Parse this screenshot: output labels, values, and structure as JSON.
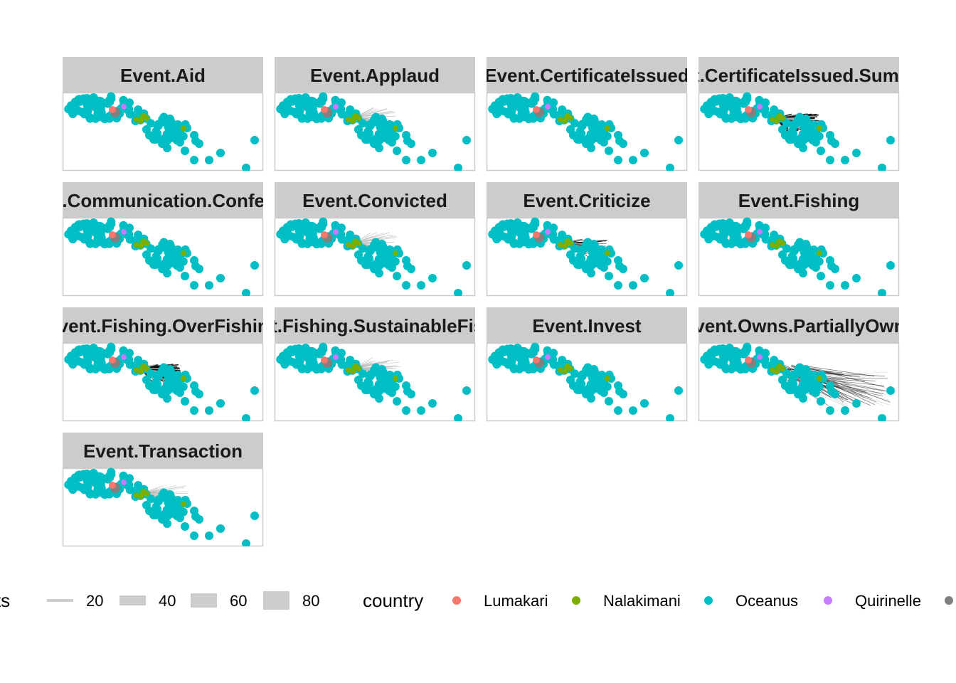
{
  "chart_data": {
    "type": "scatter",
    "description_type": "faceted network graph",
    "facets": [
      {
        "label": "Event.Aid",
        "edge_density": 0
      },
      {
        "label": "Event.Applaud",
        "edge_density": 1
      },
      {
        "label": "Event.CertificateIssued",
        "edge_density": 0
      },
      {
        "label": "Event.CertificateIssued.Summons",
        "edge_density": 3
      },
      {
        "label": "Event.Communication.Conference",
        "edge_density": 0
      },
      {
        "label": "Event.Convicted",
        "edge_density": 1
      },
      {
        "label": "Event.Criticize",
        "edge_density": 2
      },
      {
        "label": "Event.Fishing",
        "edge_density": 0
      },
      {
        "label": "Event.Fishing.OverFishing",
        "edge_density": 3
      },
      {
        "label": "Event.Fishing.SustainableFishing",
        "edge_density": 1
      },
      {
        "label": "Event.Invest",
        "edge_density": 0
      },
      {
        "label": "Event.Owns.PartiallyOwns",
        "edge_density": 4
      },
      {
        "label": "Event.Transaction",
        "edge_density": 1
      }
    ],
    "legend_weights": {
      "title": "weights",
      "values": [
        20,
        40,
        60,
        80
      ]
    },
    "legend_country": {
      "title": "country",
      "entries": [
        {
          "name": "Lumakari",
          "color": "#F8766D"
        },
        {
          "name": "Nalakimani",
          "color": "#7CAE00"
        },
        {
          "name": "Oceanus",
          "color": "#00BFC4"
        },
        {
          "name": "Quirinelle",
          "color": "#C77CFF"
        },
        {
          "name": "",
          "color": "#808080"
        }
      ]
    },
    "colors": {
      "strip_bg": "#CCCCCC",
      "panel_border": "#CCCCCC",
      "edge_light": "#BBBBBB",
      "edge_dark": "#111111"
    }
  }
}
